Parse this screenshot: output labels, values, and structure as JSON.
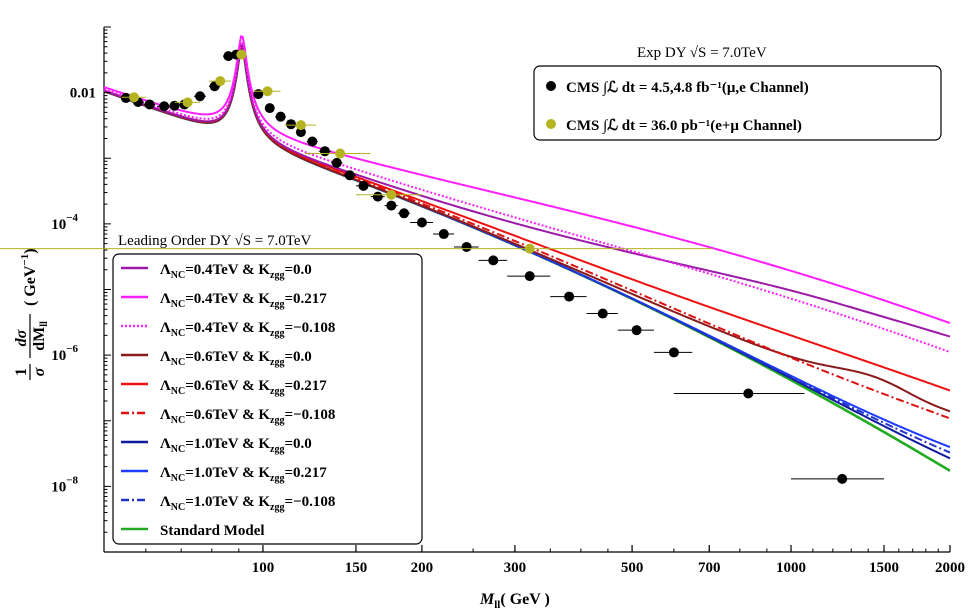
{
  "chart_data": {
    "type": "line",
    "title": "",
    "xlabel": "M_ll( GeV )",
    "ylabel": "1/σ dσ/dM_ll ( GeV^-1 )",
    "x_scale": "log",
    "y_scale": "log",
    "xlim": [
      50,
      2000
    ],
    "ylim": [
      1e-09,
      0.1
    ],
    "x_ticks": [
      {
        "value": 100,
        "label": "100"
      },
      {
        "value": 150,
        "label": "150"
      },
      {
        "value": 200,
        "label": "200"
      },
      {
        "value": 300,
        "label": "300"
      },
      {
        "value": 500,
        "label": "500"
      },
      {
        "value": 700,
        "label": "700"
      },
      {
        "value": 1000,
        "label": "1000"
      },
      {
        "value": 1500,
        "label": "1500"
      },
      {
        "value": 2000,
        "label": "2000"
      }
    ],
    "y_ticks": [
      {
        "value": 0.01,
        "label": "0.01"
      },
      {
        "value": 0.0001,
        "label": "10"
      },
      {
        "value": 1e-06,
        "label": "10"
      },
      {
        "value": 1e-08,
        "label": "10"
      }
    ],
    "y_tick_exponents": [
      "−4",
      "−6",
      "−8"
    ],
    "axis_labels": {
      "x_main": "M",
      "x_sub": "ll",
      "x_rest": "( GeV )",
      "y_num": "1",
      "y_den": "σ",
      "y_frac_num": "dσ",
      "y_frac_den": "dM",
      "y_frac_den_sub": "ll",
      "y_units": "( GeV",
      "y_units_exp": "−1",
      "y_units_close": ")"
    },
    "model_legend_title": "Leading Order DY √S = 7.0 TeV",
    "data_legend_title": "Exp DY √S = 7.0 TeV",
    "data_series": [
      {
        "name": "CMS ∫ℒ dt = 4.5,4.8 fb⁻¹(μ,e Channel)",
        "color": "#000000",
        "points": [
          {
            "x": 55,
            "y": 0.0083,
            "xerr": 0
          },
          {
            "x": 58,
            "y": 0.0072,
            "xerr": 1.5
          },
          {
            "x": 61,
            "y": 0.0066,
            "xerr": 1.5
          },
          {
            "x": 65,
            "y": 0.0062,
            "xerr": 2
          },
          {
            "x": 68,
            "y": 0.0063,
            "xerr": 1.5
          },
          {
            "x": 71,
            "y": 0.0066,
            "xerr": 1.5
          },
          {
            "x": 76,
            "y": 0.0088,
            "xerr": 2
          },
          {
            "x": 81,
            "y": 0.0125,
            "xerr": 2
          },
          {
            "x": 86,
            "y": 0.036,
            "xerr": 2
          },
          {
            "x": 89,
            "y": 0.038,
            "xerr": 1.5
          },
          {
            "x": 98,
            "y": 0.0095,
            "xerr": 2
          },
          {
            "x": 103,
            "y": 0.0058,
            "xerr": 2
          },
          {
            "x": 108,
            "y": 0.0043,
            "xerr": 2.5
          },
          {
            "x": 113,
            "y": 0.0033,
            "xerr": 2.5
          },
          {
            "x": 118,
            "y": 0.0025,
            "xerr": 2.5
          },
          {
            "x": 124,
            "y": 0.0018,
            "xerr": 3
          },
          {
            "x": 131,
            "y": 0.00128,
            "xerr": 3.5
          },
          {
            "x": 138,
            "y": 0.00085,
            "xerr": 3.5
          },
          {
            "x": 146,
            "y": 0.00055,
            "xerr": 4
          },
          {
            "x": 155,
            "y": 0.00038,
            "xerr": 5
          },
          {
            "x": 165,
            "y": 0.00026,
            "xerr": 5
          },
          {
            "x": 175,
            "y": 0.00019,
            "xerr": 5
          },
          {
            "x": 185,
            "y": 0.000145,
            "xerr": 5
          },
          {
            "x": 200,
            "y": 0.000105,
            "xerr": 10
          },
          {
            "x": 220,
            "y": 7e-05,
            "xerr": 10
          },
          {
            "x": 243,
            "y": 4.45e-05,
            "xerr": 13
          },
          {
            "x": 273,
            "y": 2.78e-05,
            "xerr": 17
          },
          {
            "x": 320,
            "y": 1.6e-05,
            "xerr": 30
          },
          {
            "x": 380,
            "y": 7.8e-06,
            "xerr": 30
          },
          {
            "x": 440,
            "y": 4.3e-06,
            "xerr": 30
          },
          {
            "x": 510,
            "y": 2.4e-06,
            "xerr": 40
          },
          {
            "x": 600,
            "y": 1.1e-06,
            "xerr": 50
          },
          {
            "x": 830,
            "y": 2.6e-07,
            "xerr": 230
          },
          {
            "x": 1250,
            "y": 1.3e-08,
            "xerr": 250
          }
        ]
      },
      {
        "name": "CMS ∫ℒ dt = 36.0 pb⁻¹(e+μ Channel)",
        "color": "#b5b321",
        "points": [
          {
            "x": 57,
            "y": 0.0085,
            "xerr": 3
          },
          {
            "x": 72,
            "y": 0.0071,
            "xerr": 4
          },
          {
            "x": 83,
            "y": 0.015,
            "xerr": 4
          },
          {
            "x": 91,
            "y": 0.038,
            "xerr": 2
          },
          {
            "x": 102,
            "y": 0.0105,
            "xerr": 6
          },
          {
            "x": 118,
            "y": 0.0032,
            "xerr": 8
          },
          {
            "x": 140,
            "y": 0.00118,
            "xerr": 20
          },
          {
            "x": 175,
            "y": 0.000278,
            "xerr": 25
          },
          {
            "x": 320,
            "y": 4.2e-05,
            "xerr": 390
          }
        ]
      }
    ],
    "model_series": [
      {
        "name": "Λ_NC=0.4 TeV & K_zgg=0.0",
        "label": "ΛNC=0.4TeV & Kzgg=0.0",
        "color": "#9b1aa7",
        "dash": "solid",
        "tail": "flat_high"
      },
      {
        "name": "Λ_NC=0.4 TeV & K_zgg=0.217",
        "label": "ΛNC=0.4TeV & Kzgg=0.217",
        "color": "#ff1fff",
        "dash": "solid",
        "tail": "high"
      },
      {
        "name": "Λ_NC=0.4 TeV & K_zgg=−0.108",
        "label": "ΛNC=0.4TeV & Kzgg=−0.108",
        "color": "#ff1fff",
        "dash": "dotted",
        "tail": "mid_high"
      },
      {
        "name": "Λ_NC=0.6 TeV & K_zgg=0.0",
        "label": "ΛNC=0.6TeV & Kzgg=0.0",
        "color": "#8b1a1a",
        "dash": "solid",
        "tail": "mid_bump"
      },
      {
        "name": "Λ_NC=0.6 TeV & K_zgg=0.217",
        "label": "ΛNC=0.6TeV & Kzgg=0.217",
        "color": "#ee1111",
        "dash": "solid",
        "tail": "mid"
      },
      {
        "name": "Λ_NC=0.6 TeV & K_zgg=−0.108",
        "label": "ΛNC=0.6TeV & Kzgg=−0.108",
        "color": "#dd1111",
        "dash": "dashdot",
        "tail": "mid_low"
      },
      {
        "name": "Λ_NC=1.0 TeV & K_zgg=0.0",
        "label": "ΛNC=1.0TeV & Kzgg=0.0",
        "color": "#101aa0",
        "dash": "solid",
        "tail": "low"
      },
      {
        "name": "Λ_NC=1.0 TeV & K_zgg=0.217",
        "label": "ΛNC=1.0TeV & Kzgg=0.217",
        "color": "#1e3cff",
        "dash": "solid",
        "tail": "low_plus"
      },
      {
        "name": "Λ_NC=1.0 TeV & K_zgg=−0.108",
        "label": "ΛNC=1.0TeV & Kzgg=−0.108",
        "color": "#2233cc",
        "dash": "dashdot",
        "tail": "low_mid"
      },
      {
        "name": "Standard Model",
        "label": "Standard Model",
        "color": "#22aa22",
        "dash": "solid",
        "tail": "sm"
      }
    ],
    "legend_labels": {
      "lambda": "Λ",
      "nc": "NC",
      "k": "K",
      "zgg": "zgg"
    },
    "legend_model_items": [
      {
        "lam": "=0.4TeV & ",
        "k": "=0.0"
      },
      {
        "lam": "=0.4TeV & ",
        "k": "=0.217"
      },
      {
        "lam": "=0.4TeV & ",
        "k": "=−0.108"
      },
      {
        "lam": "=0.6TeV & ",
        "k": "=0.0"
      },
      {
        "lam": "=0.6TeV & ",
        "k": "=0.217"
      },
      {
        "lam": "=0.6TeV & ",
        "k": "=−0.108"
      },
      {
        "lam": "=1.0TeV & ",
        "k": "=0.0"
      },
      {
        "lam": "=1.0TeV & ",
        "k": "=0.217"
      },
      {
        "lam": "=1.0TeV & ",
        "k": "=−0.108"
      }
    ],
    "legend_sm_label": "Standard Model",
    "legend_data_items": [
      "CMS ∫ℒ dt = 4.5,4.8 fb⁻¹(μ,e Channel)",
      "CMS ∫ℒ dt = 36.0 pb⁻¹(e+μ Channel)"
    ],
    "legend_model_title": "Leading Order DY √S = 7.0TeV",
    "legend_data_title": "Exp DY √S  = 7.0TeV"
  }
}
